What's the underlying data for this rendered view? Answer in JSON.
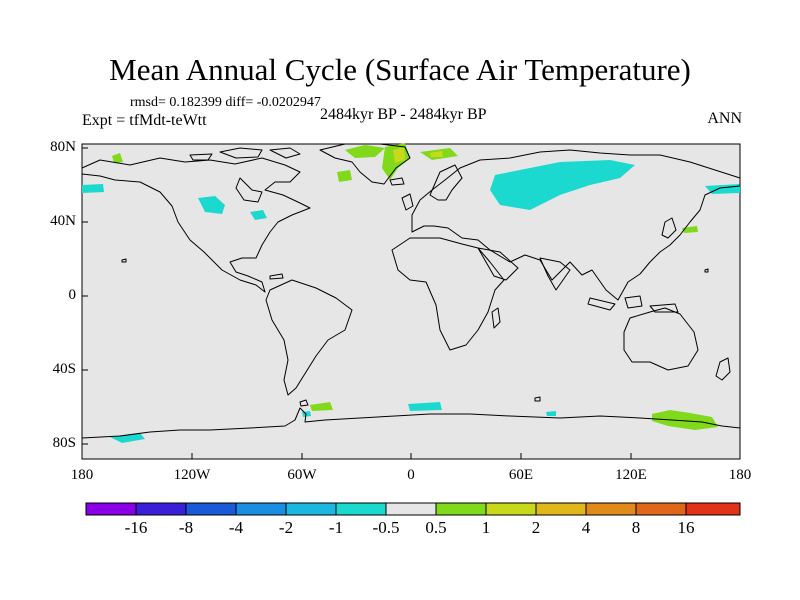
{
  "title": "Mean Annual Cycle (Surface Air Temperature)",
  "stats": "rmsd= 0.182399 diff= -0.0202947",
  "experiment": "Expt = tfMdt-teWtt",
  "period": "2484kyr BP - 2484kyr BP",
  "season": "ANN",
  "lat_ticks": [
    "80N",
    "40N",
    "0",
    "40S",
    "80S"
  ],
  "lon_ticks": [
    "180",
    "120W",
    "60W",
    "0",
    "60E",
    "120E",
    "180"
  ],
  "colorbar": {
    "labels": [
      "-16",
      "-8",
      "-4",
      "-2",
      "-1",
      "-0.5",
      "0.5",
      "1",
      "2",
      "4",
      "8",
      "16"
    ],
    "colors": [
      "#8a00e6",
      "#3a1fd9",
      "#1a5ad9",
      "#1a8ee0",
      "#1ab8e0",
      "#1cd9d0",
      "#e6e6e6",
      "#80d91a",
      "#c8d91a",
      "#e0b81a",
      "#e08a1a",
      "#e0661a",
      "#e0331a"
    ]
  },
  "colors": {
    "land_ocean": "#e6e6e6",
    "coast": "#000000"
  }
}
